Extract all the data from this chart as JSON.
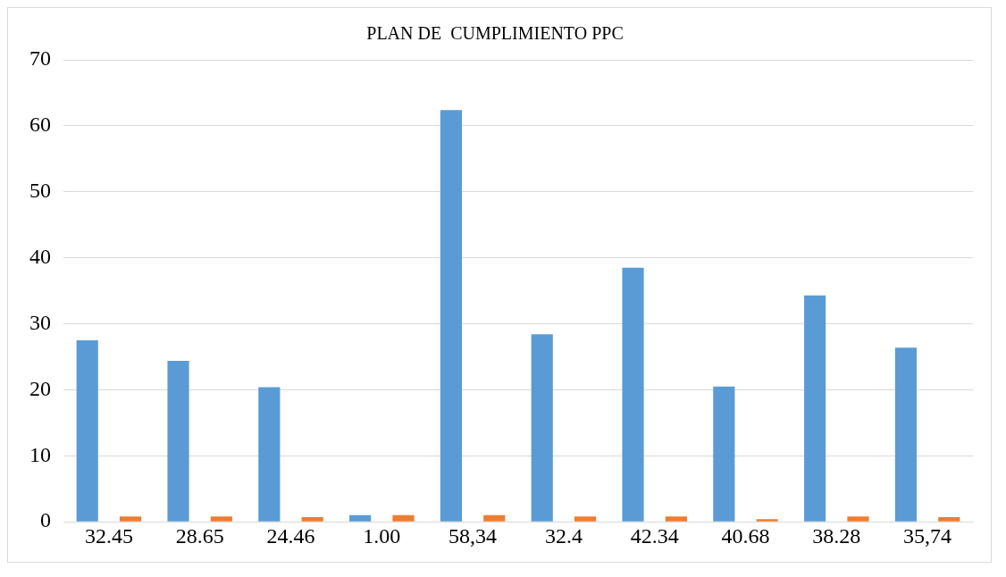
{
  "chart_data": {
    "type": "bar",
    "title": "PLAN DE  CUMPLIMIENTO PPC",
    "categories": [
      "32.45",
      "28.65",
      "24.46",
      "1.00",
      "58,34",
      "32.4",
      "42.34",
      "40.68",
      "38.28",
      "35,74"
    ],
    "series": [
      {
        "color": "#5b9bd5",
        "values": [
          27.5,
          24.4,
          20.4,
          1.0,
          62.4,
          28.4,
          38.5,
          20.5,
          34.3,
          26.4
        ]
      },
      {
        "color": "#ed7d31",
        "values": [
          0.8,
          0.8,
          0.7,
          1.0,
          1.0,
          0.8,
          0.8,
          0.4,
          0.8,
          0.7
        ]
      }
    ],
    "ylim": [
      0,
      70
    ],
    "yticks": [
      0,
      10,
      20,
      30,
      40,
      50,
      60,
      70
    ],
    "grid": "y",
    "legend": false
  }
}
